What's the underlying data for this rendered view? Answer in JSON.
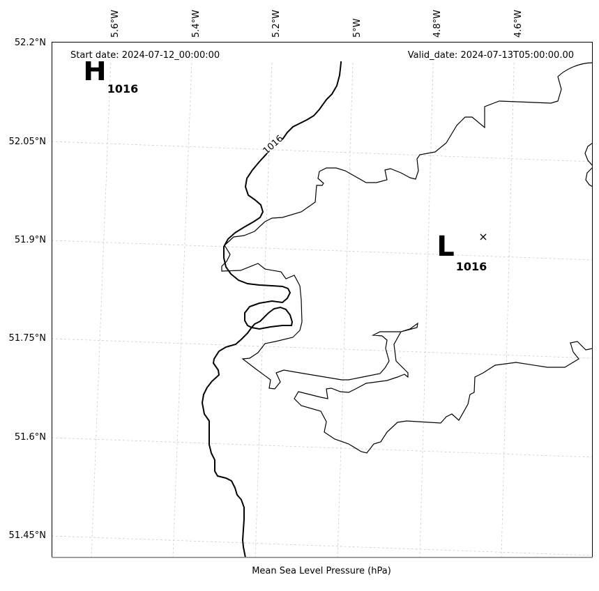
{
  "header": {
    "start_date": "Start date: 2024-07-12_00:00:00",
    "valid_date": "Valid_date: 2024-07-13T05:00:00.00"
  },
  "footer": {
    "caption": "Mean Sea Level Pressure (hPa)"
  },
  "lat_labels": [
    "52.2°N",
    "52.05°N",
    "51.9°N",
    "51.75°N",
    "51.6°N",
    "51.45°N"
  ],
  "lon_labels": [
    "5.6°W",
    "5.4°W",
    "5.2°W",
    "5°W",
    "4.8°W",
    "4.6°W"
  ],
  "pressure_centers": {
    "high": {
      "symbol": "H",
      "value": "1016"
    },
    "low": {
      "symbol": "L",
      "value": "1016",
      "marker": "×"
    }
  },
  "isobar_label": "1016",
  "colors": {
    "isobar": "#000000",
    "coastline": "#000000",
    "grid": "#cccccc"
  }
}
